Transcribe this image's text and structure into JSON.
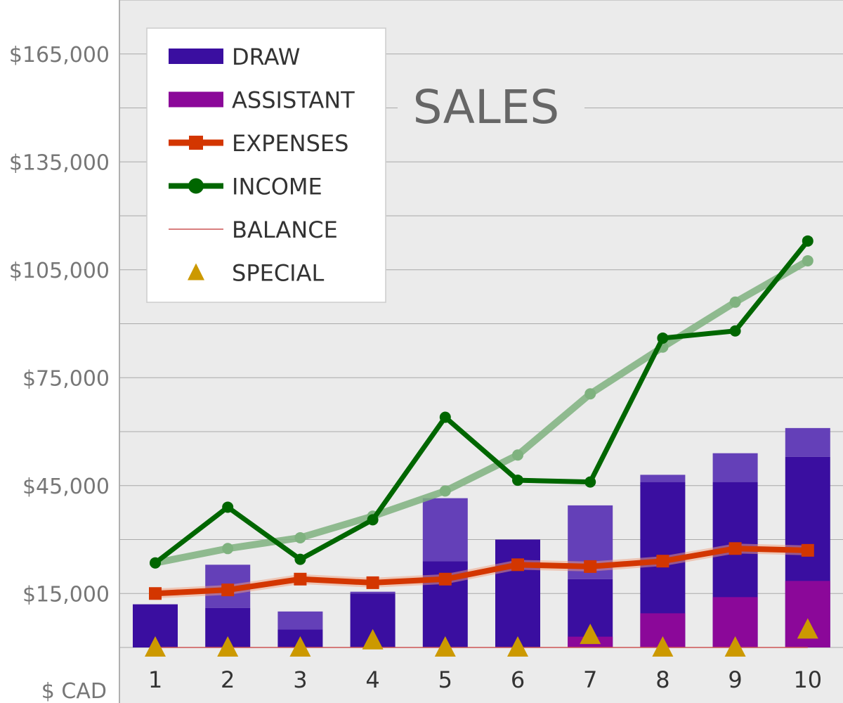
{
  "chart_data": {
    "type": "bar",
    "title": "SALES",
    "ylabel": "$ CAD",
    "ylim": [
      0,
      180000
    ],
    "yticks": [
      15000,
      45000,
      75000,
      105000,
      135000,
      165000
    ],
    "ytick_labels": [
      "$15,000",
      "$45,000",
      "$75,000",
      "$105,000",
      "$135,000",
      "$165,000"
    ],
    "grid": true,
    "legend_position": "top-left",
    "categories": [
      "1",
      "2",
      "3",
      "4",
      "5",
      "6",
      "7",
      "8",
      "9",
      "10"
    ],
    "series": [
      {
        "name": "DRAW",
        "type": "bar",
        "color": "#3a0ea0",
        "values": [
          12000,
          11000,
          5000,
          15000,
          24000,
          30000,
          19000,
          46000,
          46000,
          53000
        ],
        "faded_top_values": [
          12000,
          23000,
          10000,
          15500,
          41500,
          30000,
          39500,
          48000,
          54000,
          61000
        ]
      },
      {
        "name": "ASSISTANT",
        "type": "bar",
        "color": "#8b0899",
        "values": [
          0,
          0,
          0,
          0,
          0,
          0,
          3000,
          9500,
          14000,
          18500
        ]
      },
      {
        "name": "EXPENSES",
        "type": "line",
        "marker": "square",
        "color": "#d33600",
        "values": [
          15000,
          16000,
          19000,
          18000,
          19000,
          23000,
          22500,
          24000,
          27500,
          27000
        ]
      },
      {
        "name": "INCOME",
        "type": "line",
        "marker": "circle",
        "color": "#006600",
        "values": [
          23500,
          39000,
          24500,
          35500,
          64000,
          46500,
          46000,
          86000,
          88000,
          113000
        ],
        "trend_values": [
          23500,
          27500,
          30500,
          36500,
          43500,
          53500,
          70500,
          83500,
          96000,
          107500
        ]
      },
      {
        "name": "BALANCE",
        "type": "line",
        "color": "#cc5555",
        "values": [
          0,
          0,
          0,
          0,
          0,
          0,
          0,
          0,
          0,
          0
        ]
      },
      {
        "name": "SPECIAL",
        "type": "scatter",
        "marker": "triangle",
        "color": "#cc9900",
        "values": [
          0,
          0,
          0,
          2000,
          0,
          0,
          3500,
          0,
          0,
          5000
        ]
      }
    ]
  }
}
